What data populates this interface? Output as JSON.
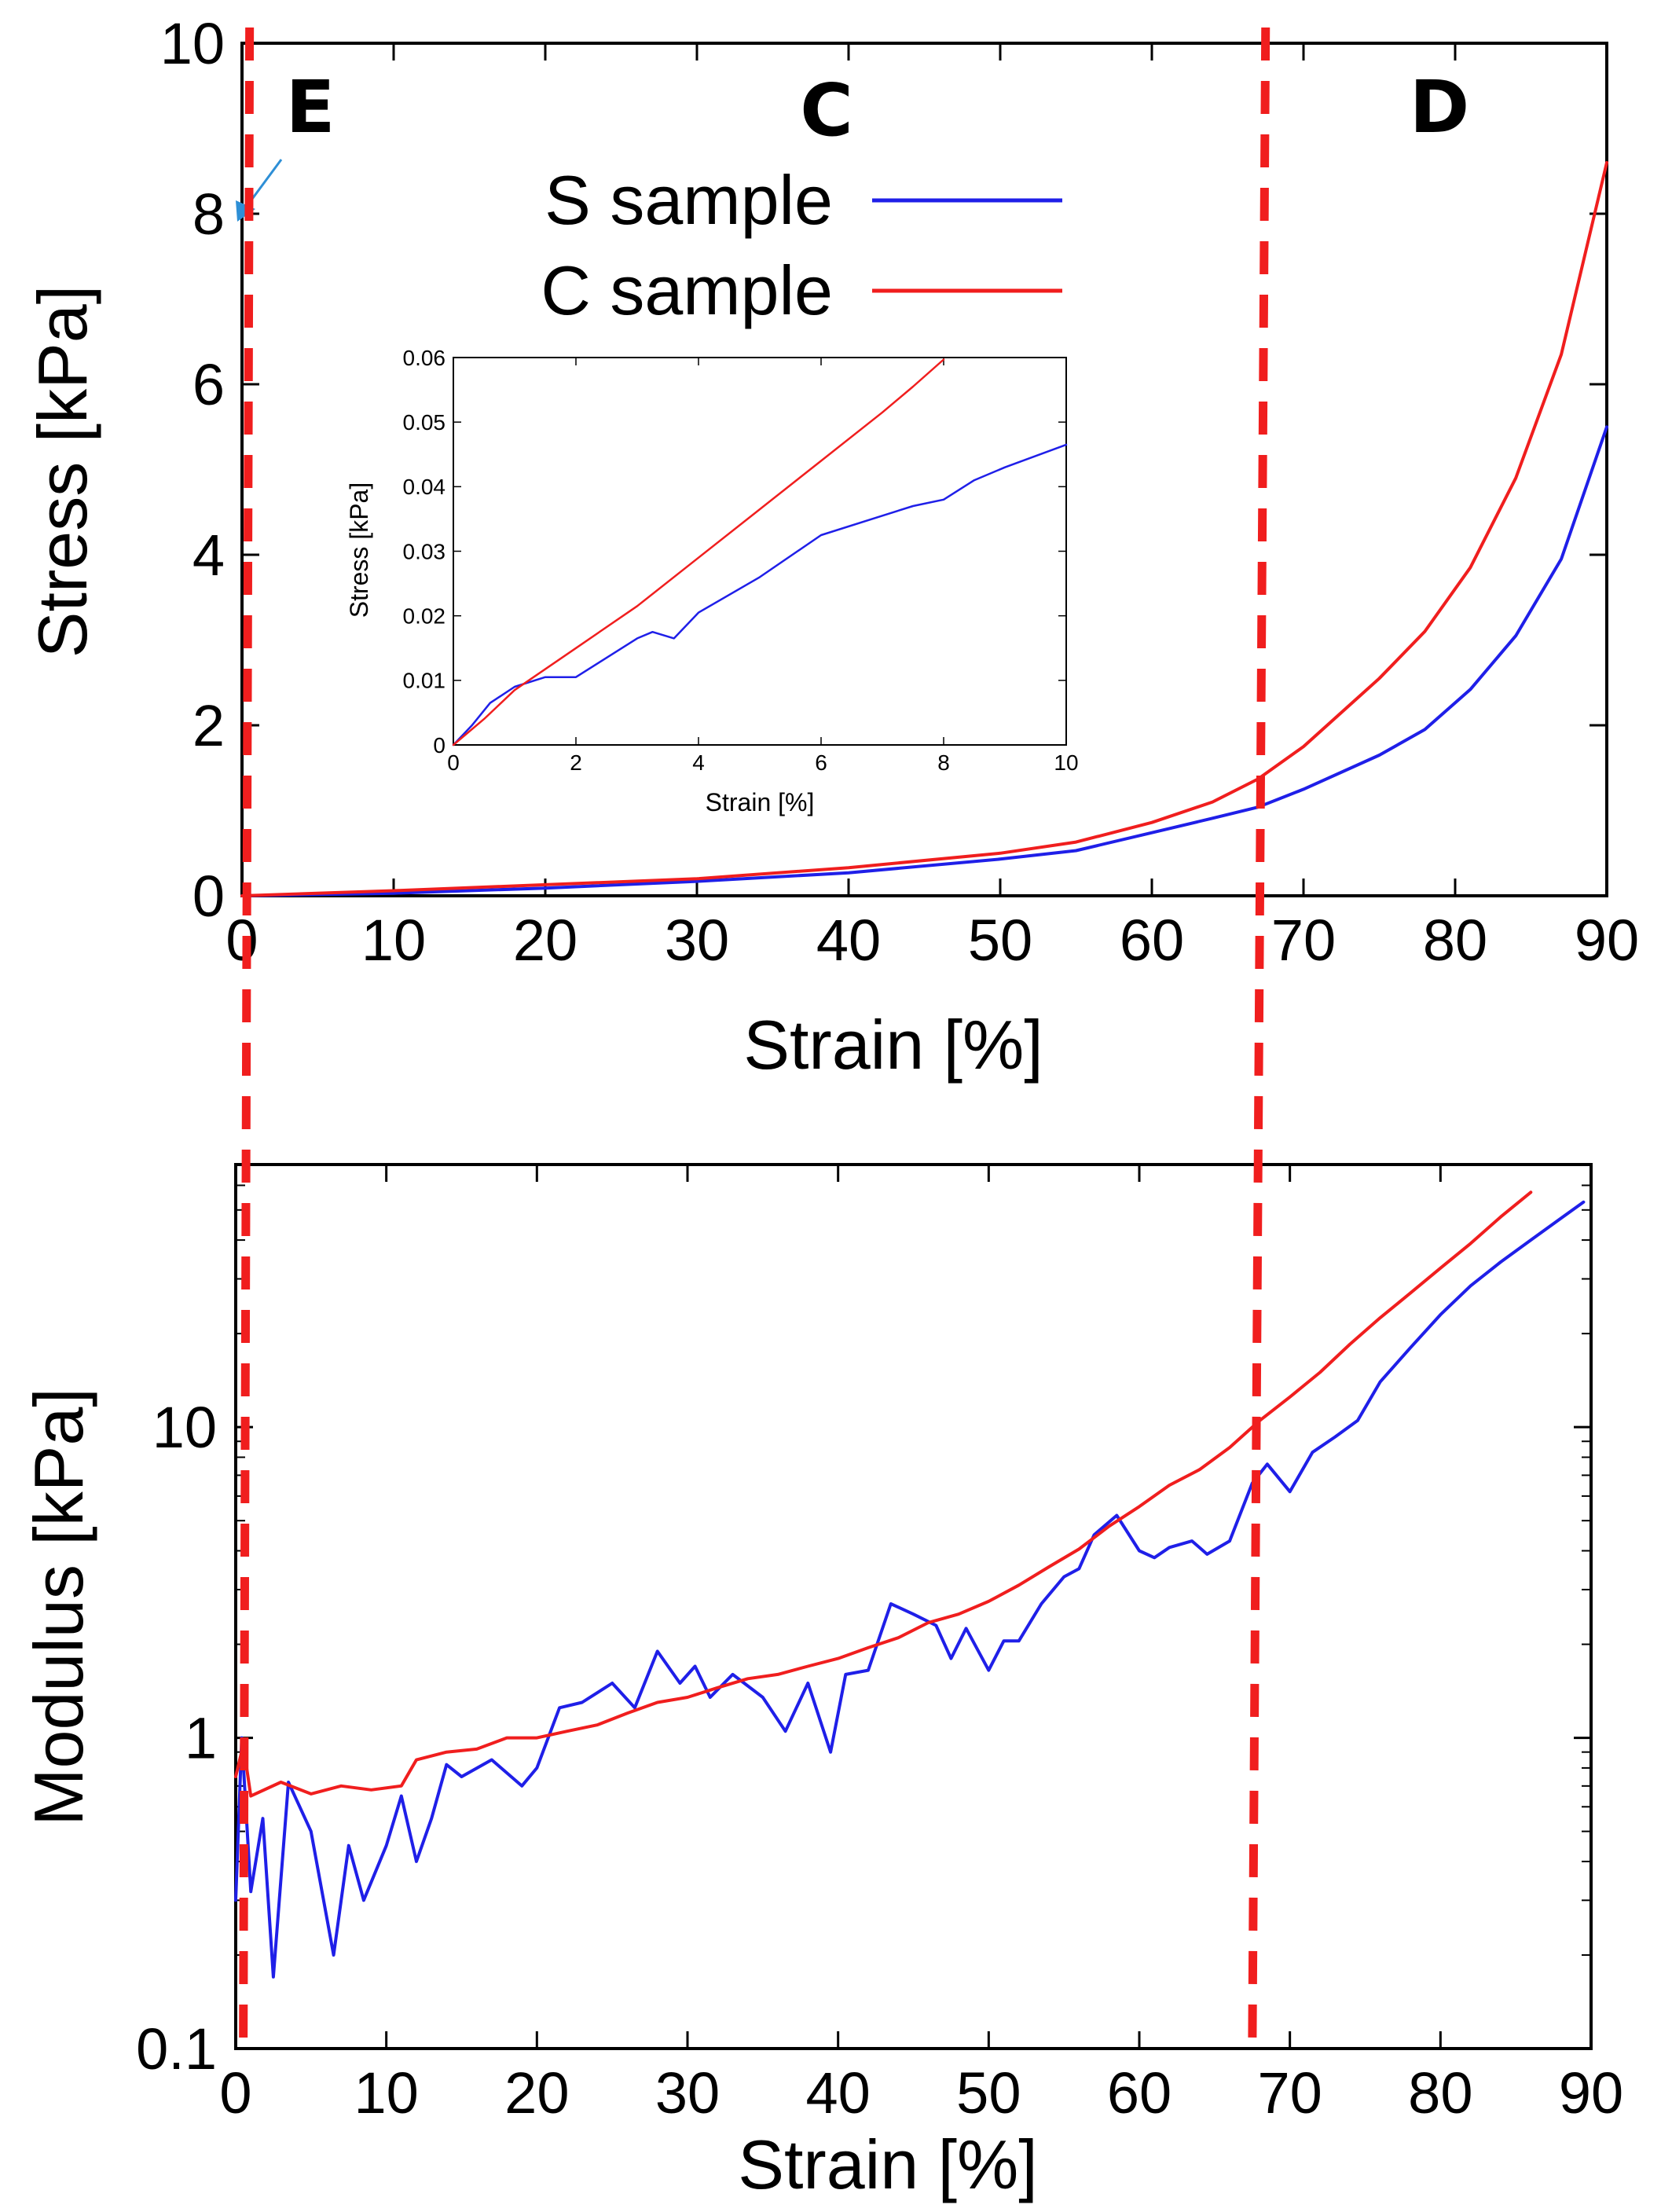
{
  "colors": {
    "s_sample": "#1f1fe8",
    "c_sample": "#f01e1e",
    "divider": "#f01e1e",
    "annotation_arrow": "#2e8fd6",
    "axis": "#000000"
  },
  "region_labels": [
    "E",
    "C",
    "D"
  ],
  "region_dividers": [
    0.5,
    67.5
  ],
  "chart_data": [
    {
      "id": "stress-strain",
      "type": "line",
      "title": "",
      "xlabel": "Strain [%]",
      "ylabel": "Stress [kPa]",
      "xlim": [
        0,
        90
      ],
      "ylim": [
        0,
        10
      ],
      "xticks": [
        "0",
        "10",
        "20",
        "30",
        "40",
        "50",
        "60",
        "70",
        "80",
        "90"
      ],
      "yticks": [
        "0",
        "2",
        "4",
        "6",
        "8",
        "10"
      ],
      "grid": false,
      "legend": "top-center",
      "series": [
        {
          "name": "S sample",
          "color_key": "s_sample",
          "points": [
            [
              0,
              0
            ],
            [
              10,
              0.03
            ],
            [
              20,
              0.09
            ],
            [
              30,
              0.17
            ],
            [
              40,
              0.27
            ],
            [
              50,
              0.43
            ],
            [
              55,
              0.53
            ],
            [
              60,
              0.74
            ],
            [
              64,
              0.91
            ],
            [
              67,
              1.04
            ],
            [
              70,
              1.25
            ],
            [
              75,
              1.65
            ],
            [
              78,
              1.95
            ],
            [
              81,
              2.42
            ],
            [
              84,
              3.05
            ],
            [
              87,
              3.95
            ],
            [
              90,
              5.5
            ]
          ]
        },
        {
          "name": "C sample",
          "color_key": "c_sample",
          "points": [
            [
              0,
              0
            ],
            [
              10,
              0.06
            ],
            [
              20,
              0.13
            ],
            [
              30,
              0.2
            ],
            [
              40,
              0.33
            ],
            [
              50,
              0.5
            ],
            [
              55,
              0.63
            ],
            [
              60,
              0.86
            ],
            [
              64,
              1.1
            ],
            [
              67,
              1.37
            ],
            [
              70,
              1.75
            ],
            [
              75,
              2.55
            ],
            [
              78,
              3.1
            ],
            [
              81,
              3.85
            ],
            [
              84,
              4.9
            ],
            [
              87,
              6.35
            ],
            [
              90,
              8.6
            ]
          ]
        }
      ]
    },
    {
      "id": "stress-strain-inset",
      "type": "line",
      "title": "",
      "xlabel": "Strain [%]",
      "ylabel": "Stress [kPa]",
      "xlim": [
        0,
        10
      ],
      "ylim": [
        0,
        0.06
      ],
      "xticks": [
        "0",
        "2",
        "4",
        "6",
        "8",
        "10"
      ],
      "yticks": [
        "0",
        "0.01",
        "0.02",
        "0.03",
        "0.04",
        "0.05",
        "0.06"
      ],
      "grid": false,
      "series": [
        {
          "color_key": "s_sample",
          "points": [
            [
              0,
              0
            ],
            [
              0.3,
              0.003
            ],
            [
              0.6,
              0.0065
            ],
            [
              1.0,
              0.009
            ],
            [
              1.5,
              0.0105
            ],
            [
              2.0,
              0.0105
            ],
            [
              2.5,
              0.0135
            ],
            [
              3.0,
              0.0165
            ],
            [
              3.25,
              0.0175
            ],
            [
              3.6,
              0.0165
            ],
            [
              4.0,
              0.0205
            ],
            [
              5.0,
              0.026
            ],
            [
              6.0,
              0.0325
            ],
            [
              7.0,
              0.0355
            ],
            [
              7.5,
              0.037
            ],
            [
              8.0,
              0.038
            ],
            [
              8.5,
              0.041
            ],
            [
              9.0,
              0.043
            ],
            [
              10.0,
              0.0465
            ]
          ]
        },
        {
          "color_key": "c_sample",
          "points": [
            [
              0,
              0
            ],
            [
              0.5,
              0.004
            ],
            [
              1,
              0.0085
            ],
            [
              2,
              0.015
            ],
            [
              3,
              0.0215
            ],
            [
              4,
              0.029
            ],
            [
              5,
              0.0365
            ],
            [
              6,
              0.044
            ],
            [
              7,
              0.0515
            ],
            [
              7.5,
              0.0555
            ],
            [
              8,
              0.0597
            ]
          ]
        }
      ]
    },
    {
      "id": "modulus-strain",
      "type": "line",
      "title": "",
      "xlabel": "Strain [%]",
      "ylabel": "Modulus [kPa]",
      "xlim": [
        0,
        90
      ],
      "ylim": [
        0.1,
        70
      ],
      "yscale": "log",
      "xticks": [
        "0",
        "10",
        "20",
        "30",
        "40",
        "50",
        "60",
        "70",
        "80",
        "90"
      ],
      "yticks": [
        "0.1",
        "1",
        "10"
      ],
      "grid": false,
      "series": [
        {
          "name": "S sample",
          "color_key": "s_sample",
          "points": [
            [
              0,
              0.3
            ],
            [
              0.4,
              1
            ],
            [
              1,
              0.32
            ],
            [
              1.8,
              0.55
            ],
            [
              2.5,
              0.17
            ],
            [
              3.5,
              0.72
            ],
            [
              5,
              0.5
            ],
            [
              6.5,
              0.2
            ],
            [
              7.5,
              0.45
            ],
            [
              8.5,
              0.3
            ],
            [
              10,
              0.45
            ],
            [
              11,
              0.65
            ],
            [
              12,
              0.4
            ],
            [
              13,
              0.55
            ],
            [
              14,
              0.82
            ],
            [
              15,
              0.75
            ],
            [
              17,
              0.85
            ],
            [
              19,
              0.7
            ],
            [
              20,
              0.8
            ],
            [
              21.5,
              1.25
            ],
            [
              23,
              1.3
            ],
            [
              25,
              1.5
            ],
            [
              26.5,
              1.25
            ],
            [
              28,
              1.9
            ],
            [
              29.5,
              1.5
            ],
            [
              30.5,
              1.7
            ],
            [
              31.5,
              1.35
            ],
            [
              33,
              1.6
            ],
            [
              35,
              1.35
            ],
            [
              36.5,
              1.05
            ],
            [
              38,
              1.5
            ],
            [
              39.5,
              0.9
            ],
            [
              40.5,
              1.6
            ],
            [
              42,
              1.65
            ],
            [
              43.5,
              2.7
            ],
            [
              45,
              2.5
            ],
            [
              46.5,
              2.3
            ],
            [
              47.5,
              1.8
            ],
            [
              48.5,
              2.25
            ],
            [
              50,
              1.65
            ],
            [
              51,
              2.05
            ],
            [
              52,
              2.05
            ],
            [
              53.5,
              2.7
            ],
            [
              55,
              3.3
            ],
            [
              56,
              3.5
            ],
            [
              57,
              4.5
            ],
            [
              58.5,
              5.2
            ],
            [
              60,
              4.0
            ],
            [
              61,
              3.8
            ],
            [
              62,
              4.1
            ],
            [
              63.5,
              4.3
            ],
            [
              64.5,
              3.9
            ],
            [
              66,
              4.3
            ],
            [
              67.5,
              6.6
            ],
            [
              68.5,
              7.6
            ],
            [
              70,
              6.2
            ],
            [
              71.5,
              8.3
            ],
            [
              73,
              9.3
            ],
            [
              74.5,
              10.5
            ],
            [
              76,
              14
            ],
            [
              78,
              18
            ],
            [
              80,
              23
            ],
            [
              82,
              28.5
            ],
            [
              84,
              34
            ],
            [
              86,
              40
            ],
            [
              88,
              47
            ],
            [
              89.5,
              53
            ]
          ]
        },
        {
          "name": "C sample",
          "color_key": "c_sample",
          "points": [
            [
              0,
              0.75
            ],
            [
              0.5,
              0.95
            ],
            [
              1,
              0.65
            ],
            [
              3,
              0.72
            ],
            [
              5,
              0.66
            ],
            [
              7,
              0.7
            ],
            [
              9,
              0.68
            ],
            [
              11,
              0.7
            ],
            [
              12,
              0.85
            ],
            [
              14,
              0.9
            ],
            [
              16,
              0.92
            ],
            [
              18,
              1.0
            ],
            [
              20,
              1.0
            ],
            [
              22,
              1.05
            ],
            [
              24,
              1.1
            ],
            [
              26,
              1.2
            ],
            [
              28,
              1.3
            ],
            [
              30,
              1.35
            ],
            [
              32,
              1.45
            ],
            [
              34,
              1.55
            ],
            [
              36,
              1.6
            ],
            [
              38,
              1.7
            ],
            [
              40,
              1.8
            ],
            [
              42,
              1.95
            ],
            [
              44,
              2.1
            ],
            [
              46,
              2.35
            ],
            [
              48,
              2.5
            ],
            [
              50,
              2.75
            ],
            [
              52,
              3.1
            ],
            [
              54,
              3.55
            ],
            [
              56,
              4.05
            ],
            [
              58,
              4.8
            ],
            [
              60,
              5.55
            ],
            [
              62,
              6.5
            ],
            [
              64,
              7.3
            ],
            [
              66,
              8.6
            ],
            [
              68,
              10.5
            ],
            [
              70,
              12.5
            ],
            [
              72,
              15
            ],
            [
              74,
              18.5
            ],
            [
              76,
              22.5
            ],
            [
              78,
              27
            ],
            [
              80,
              32.5
            ],
            [
              82,
              39
            ],
            [
              84,
              47.5
            ],
            [
              86,
              57
            ]
          ]
        }
      ]
    }
  ]
}
